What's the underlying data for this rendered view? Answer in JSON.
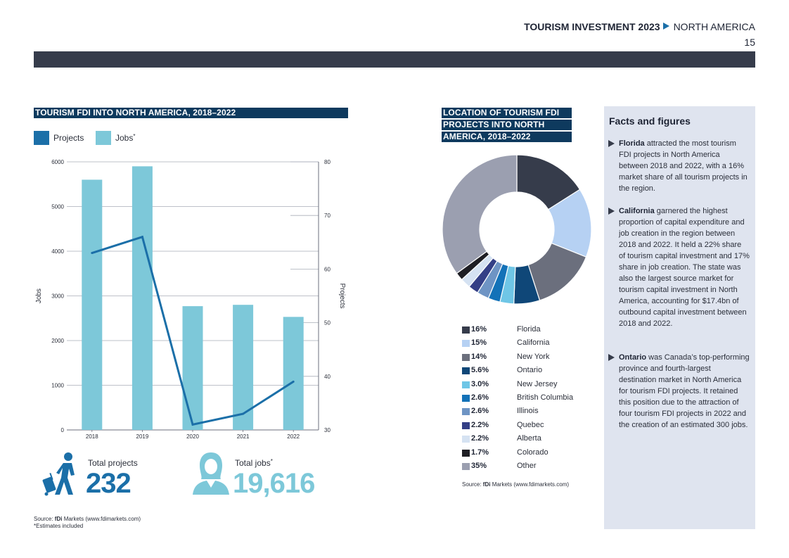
{
  "header": {
    "title_bold": "TOURISM INVESTMENT 2023",
    "region": "NORTH AMERICA",
    "page_number": "15"
  },
  "colors": {
    "dark_navy": "#0e3a5e",
    "band": "#363c4b",
    "projects_blue": "#1b6fa8",
    "jobs_cyan": "#7dc8d9",
    "facts_bg": "#dfe4ef"
  },
  "left_panel": {
    "title": "TOURISM FDI INTO NORTH AMERICA, 2018–2022",
    "legend": {
      "projects": "Projects",
      "jobs": "Jobs",
      "jobs_marker": "*"
    },
    "total_projects_label": "Total projects",
    "total_projects_value": "232",
    "total_jobs_label": "Total jobs",
    "total_jobs_marker": "*",
    "total_jobs_value": "19,616",
    "traveller_icon": "traveller-icon",
    "worker_icon": "worker-icon",
    "source_prefix": "Source: ",
    "source_brand": "fDi",
    "source_rest": " Markets (www.fdimarkets.com)",
    "footnote": "*Estimates included"
  },
  "right_panel": {
    "title_lines": [
      "LOCATION OF TOURISM FDI",
      "PROJECTS INTO NORTH",
      "AMERICA, 2018–2022"
    ],
    "source_prefix": "Source: ",
    "source_brand": "fDi",
    "source_rest": " Markets (www.fdimarkets.com)"
  },
  "facts": {
    "title": "Facts and figures",
    "items": [
      {
        "bold": "Florida",
        "text": " attracted the most tourism FDI projects in North America between 2018 and 2022, with a 16% market share of all tourism projects in the region."
      },
      {
        "bold": "California",
        "text": " garnered the highest proportion of capital expenditure and job creation in the region between 2018 and 2022. It held a 22% share of tourism capital investment and 17% share in job creation. The state was also the largest source market for tourism capital investment in North America, accounting for $17.4bn of outbound capital investment between 2018 and 2022."
      },
      {
        "bold": "Ontario",
        "text": " was Canada’s top-performing province and fourth-largest destination market in North America for tourism FDI projects. It retained this position due to the attraction of four tourism FDI projects in 2022 and the creation of an estimated 300 jobs."
      }
    ]
  },
  "chart_data": [
    {
      "type": "bar",
      "title": "TOURISM FDI INTO NORTH AMERICA, 2018–2022",
      "categories": [
        "2018",
        "2019",
        "2020",
        "2021",
        "2022"
      ],
      "series": [
        {
          "name": "Jobs*",
          "type": "bar",
          "axis": "left",
          "color": "#7dc8d9",
          "values": [
            5600,
            5900,
            2770,
            2800,
            2530
          ]
        },
        {
          "name": "Projects",
          "type": "line",
          "axis": "right",
          "color": "#1b6fa8",
          "values": [
            63,
            66,
            31,
            33,
            39
          ]
        }
      ],
      "ylabel": "Jobs",
      "ylim": [
        0,
        6000
      ],
      "yticks": [
        0,
        1000,
        2000,
        3000,
        4000,
        5000,
        6000
      ],
      "y2label": "Projects",
      "y2lim": [
        30,
        80
      ],
      "y2ticks": [
        30,
        40,
        50,
        60,
        70,
        80
      ],
      "grid": true,
      "legend_position": "top-left"
    },
    {
      "type": "pie",
      "style": "donut",
      "title": "LOCATION OF TOURISM FDI PROJECTS INTO NORTH AMERICA, 2018–2022",
      "slices": [
        {
          "label": "Florida",
          "value": 16,
          "display": "16%",
          "color": "#363c4b"
        },
        {
          "label": "California",
          "value": 15,
          "display": "15%",
          "color": "#b6d1f3"
        },
        {
          "label": "New York",
          "value": 14,
          "display": "14%",
          "color": "#6b6f7d"
        },
        {
          "label": "Ontario",
          "value": 5.6,
          "display": "5.6%",
          "color": "#0f4778"
        },
        {
          "label": "New Jersey",
          "value": 3.0,
          "display": "3.0%",
          "color": "#6fc6e6"
        },
        {
          "label": "British Columbia",
          "value": 2.6,
          "display": "2.6%",
          "color": "#1372b8"
        },
        {
          "label": "Illinois",
          "value": 2.6,
          "display": "2.6%",
          "color": "#6e94c4"
        },
        {
          "label": "Quebec",
          "value": 2.2,
          "display": "2.2%",
          "color": "#343f86"
        },
        {
          "label": "Alberta",
          "value": 2.2,
          "display": "2.2%",
          "color": "#d5e2f2"
        },
        {
          "label": "Colorado",
          "value": 1.7,
          "display": "1.7%",
          "color": "#1e1e24"
        },
        {
          "label": "Other",
          "value": 35,
          "display": "35%",
          "color": "#9b9fb0"
        }
      ],
      "legend_position": "bottom"
    }
  ]
}
